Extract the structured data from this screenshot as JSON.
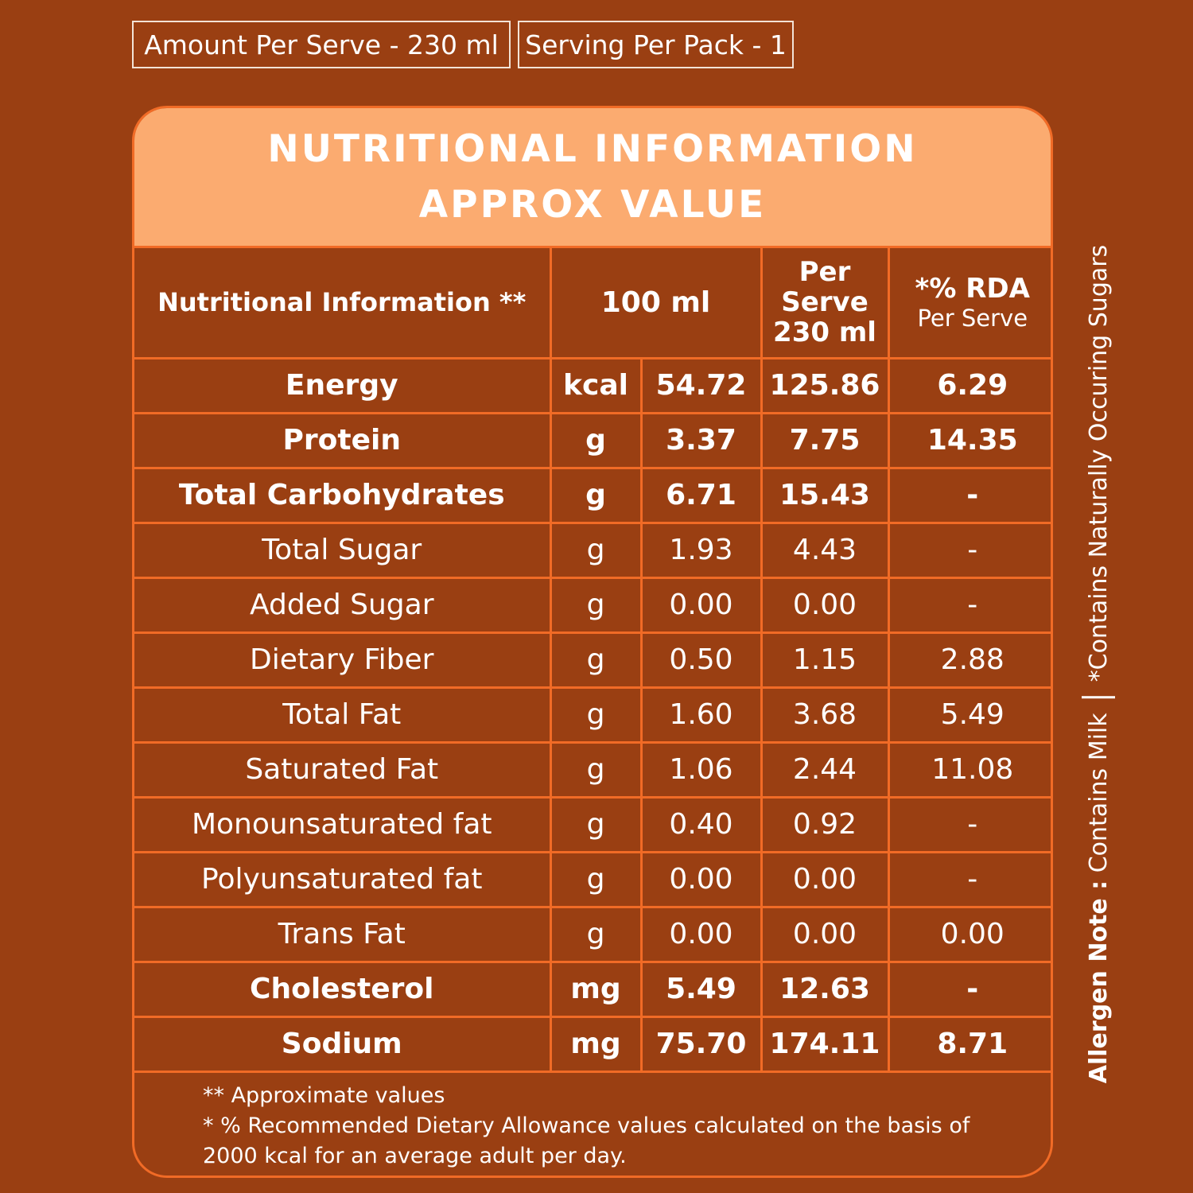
{
  "serving": {
    "amount": "Amount Per Serve - 230 ml",
    "servings": "Serving Per Pack - 1"
  },
  "panel": {
    "title_line1": "NUTRITIONAL INFORMATION",
    "title_line2": "APPROX VALUE"
  },
  "table": {
    "headers": {
      "label": "Nutritional Information  **",
      "per100": "100 ml",
      "per_serve_1": "Per",
      "per_serve_2": "Serve",
      "per_serve_3": "230 ml",
      "rda": "*% RDA",
      "rda_sub": "Per Serve"
    },
    "rows": [
      {
        "name": "Energy",
        "unit": "kcal",
        "per100": "54.72",
        "serve": "125.86",
        "rda": "6.29"
      },
      {
        "name": "Protein",
        "unit": "g",
        "per100": "3.37",
        "serve": "7.75",
        "rda": "14.35"
      },
      {
        "name": "Total Carbohydrates",
        "unit": "g",
        "per100": "6.71",
        "serve": "15.43",
        "rda": "-"
      },
      {
        "name": "Total Sugar",
        "unit": "g",
        "per100": "1.93",
        "serve": "4.43",
        "rda": "-"
      },
      {
        "name": "Added Sugar",
        "unit": "g",
        "per100": "0.00",
        "serve": "0.00",
        "rda": "-"
      },
      {
        "name": "Dietary Fiber",
        "unit": "g",
        "per100": "0.50",
        "serve": "1.15",
        "rda": "2.88"
      },
      {
        "name": "Total Fat",
        "unit": "g",
        "per100": "1.60",
        "serve": "3.68",
        "rda": "5.49"
      },
      {
        "name": "Saturated Fat",
        "unit": "g",
        "per100": "1.06",
        "serve": "2.44",
        "rda": "11.08"
      },
      {
        "name": "Monounsaturated fat",
        "unit": "g",
        "per100": "0.40",
        "serve": "0.92",
        "rda": "-"
      },
      {
        "name": "Polyunsaturated fat",
        "unit": "g",
        "per100": "0.00",
        "serve": "0.00",
        "rda": "-"
      },
      {
        "name": "Trans Fat",
        "unit": "g",
        "per100": "0.00",
        "serve": "0.00",
        "rda": "0.00"
      },
      {
        "name": "Cholesterol",
        "unit": "mg",
        "per100": "5.49",
        "serve": "12.63",
        "rda": "-"
      },
      {
        "name": "Sodium",
        "unit": "mg",
        "per100": "75.70",
        "serve": "174.11",
        "rda": "8.71"
      }
    ]
  },
  "notes": {
    "line1": "** Approximate values",
    "line2": "* % Recommended Dietary Allowance values calculated on the basis of",
    "line3": "2000 kcal for an average adult per day."
  },
  "side_note": {
    "label": "Allergen Note :",
    "allergen": " Contains Milk",
    "sugars": "*Contains Naturally Occuring Sugars"
  }
}
